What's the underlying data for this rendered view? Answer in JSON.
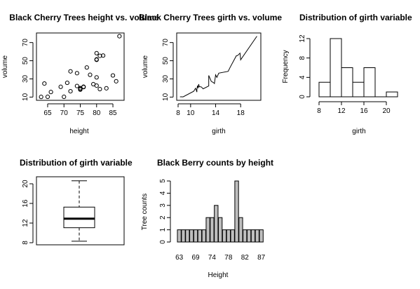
{
  "chart_data": [
    {
      "id": "scatter",
      "type": "scatter",
      "title": "Black Cherry Trees height vs. volume",
      "xlabel": "height",
      "ylabel": "volume",
      "xlim": [
        63,
        87
      ],
      "ylim": [
        10,
        77
      ],
      "xticks": [
        65,
        70,
        75,
        80,
        85
      ],
      "yticks": [
        10,
        30,
        50,
        70
      ],
      "points": [
        [
          70,
          10.3
        ],
        [
          65,
          10.3
        ],
        [
          63,
          10.2
        ],
        [
          72,
          16.4
        ],
        [
          81,
          18.8
        ],
        [
          83,
          19.7
        ],
        [
          66,
          15.6
        ],
        [
          75,
          18.2
        ],
        [
          80,
          22.6
        ],
        [
          75,
          19.9
        ],
        [
          79,
          24.2
        ],
        [
          76,
          21.0
        ],
        [
          76,
          21.4
        ],
        [
          69,
          21.3
        ],
        [
          75,
          19.1
        ],
        [
          74,
          22.2
        ],
        [
          85,
          33.8
        ],
        [
          86,
          27.4
        ],
        [
          71,
          25.7
        ],
        [
          64,
          24.9
        ],
        [
          78,
          34.5
        ],
        [
          80,
          31.7
        ],
        [
          74,
          36.3
        ],
        [
          72,
          38.3
        ],
        [
          77,
          42.6
        ],
        [
          81,
          55.4
        ],
        [
          82,
          55.7
        ],
        [
          80,
          58.3
        ],
        [
          80,
          51.5
        ],
        [
          80,
          51.0
        ],
        [
          87,
          77.0
        ]
      ]
    },
    {
      "id": "line",
      "type": "line",
      "title": "Black Cherry Trees girth vs. volume",
      "xlabel": "girth",
      "ylabel": "volume",
      "xlim": [
        8.3,
        20.6
      ],
      "ylim": [
        10.2,
        77.0
      ],
      "xticks": [
        8,
        10,
        14,
        18
      ],
      "yticks": [
        10,
        30,
        50,
        70
      ],
      "points": [
        [
          8.3,
          10.3
        ],
        [
          8.6,
          10.3
        ],
        [
          8.8,
          10.2
        ],
        [
          10.5,
          16.4
        ],
        [
          10.7,
          18.8
        ],
        [
          10.8,
          19.7
        ],
        [
          11.0,
          15.6
        ],
        [
          11.0,
          18.2
        ],
        [
          11.1,
          22.6
        ],
        [
          11.2,
          19.9
        ],
        [
          11.3,
          24.2
        ],
        [
          11.4,
          21.0
        ],
        [
          11.4,
          21.4
        ],
        [
          11.7,
          21.3
        ],
        [
          12.0,
          19.1
        ],
        [
          12.9,
          22.2
        ],
        [
          12.9,
          33.8
        ],
        [
          13.3,
          27.4
        ],
        [
          13.7,
          25.7
        ],
        [
          13.8,
          24.9
        ],
        [
          14.0,
          34.5
        ],
        [
          14.2,
          31.7
        ],
        [
          14.5,
          36.3
        ],
        [
          16.0,
          38.3
        ],
        [
          16.3,
          42.6
        ],
        [
          17.3,
          55.4
        ],
        [
          17.5,
          55.7
        ],
        [
          17.9,
          58.3
        ],
        [
          18.0,
          51.5
        ],
        [
          18.0,
          51.0
        ],
        [
          20.6,
          77.0
        ]
      ]
    },
    {
      "id": "histogram",
      "type": "bar",
      "title": "Distribution of girth variable",
      "xlabel": "girth",
      "ylabel": "Frequency",
      "xlim": [
        8,
        22
      ],
      "ylim": [
        0,
        12
      ],
      "xticks": [
        8,
        12,
        16,
        20
      ],
      "yticks": [
        0,
        4,
        8,
        12
      ],
      "bins": [
        [
          8,
          10,
          3
        ],
        [
          10,
          12,
          12
        ],
        [
          12,
          14,
          6
        ],
        [
          14,
          16,
          3
        ],
        [
          16,
          18,
          6
        ],
        [
          18,
          20,
          0
        ],
        [
          20,
          22,
          1
        ]
      ]
    },
    {
      "id": "boxplot",
      "type": "boxplot",
      "title": "Distribution of girth variable",
      "ylim": [
        8,
        21
      ],
      "yticks": [
        8,
        12,
        16,
        20
      ],
      "min": 8.3,
      "q1": 11.05,
      "median": 12.9,
      "q3": 15.25,
      "max": 20.6
    },
    {
      "id": "counts",
      "type": "bar",
      "title": "Black Berry counts by height",
      "xlabel": "Height",
      "ylabel": "Tree counts",
      "ylim": [
        0,
        5
      ],
      "yticks": [
        0,
        1,
        2,
        3,
        4,
        5
      ],
      "categories": [
        "63",
        "64",
        "65",
        "66",
        "69",
        "70",
        "71",
        "72",
        "74",
        "75",
        "76",
        "77",
        "78",
        "79",
        "80",
        "81",
        "82",
        "83",
        "85",
        "86",
        "87"
      ],
      "values": [
        1,
        1,
        1,
        1,
        1,
        1,
        1,
        2,
        2,
        3,
        2,
        1,
        1,
        1,
        5,
        2,
        1,
        1,
        1,
        1,
        1
      ],
      "shown_xticks": [
        "63",
        "69",
        "74",
        "78",
        "82",
        "87"
      ],
      "bar_color": "#bebebe"
    }
  ]
}
